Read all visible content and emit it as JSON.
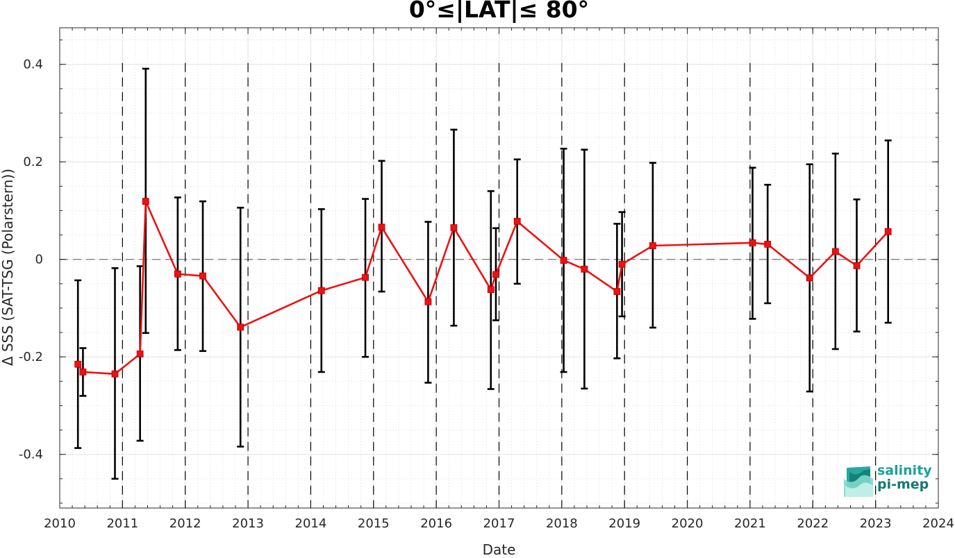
{
  "chart_data": {
    "type": "line",
    "title": "0°≤|LAT|≤ 80°",
    "xlabel": "Date",
    "ylabel": "Δ SSS (SAT-TSG (Polarstern))",
    "xlim": [
      2010,
      2024
    ],
    "ylim": [
      -0.51,
      0.475
    ],
    "x_ticks": [
      2010,
      2011,
      2012,
      2013,
      2014,
      2015,
      2016,
      2017,
      2018,
      2019,
      2020,
      2021,
      2022,
      2023,
      2024
    ],
    "y_ticks": [
      -0.4,
      -0.2,
      0,
      0.2,
      0.4
    ],
    "y_tick_labels": [
      "-0.4",
      "-0.2",
      "0",
      "0.2",
      "0.4"
    ],
    "grid": true,
    "minor_grid": true,
    "zero_line": 0,
    "year_boundaries_dashed": [
      2011,
      2012,
      2013,
      2014,
      2015,
      2016,
      2017,
      2018,
      2019,
      2020,
      2021,
      2022,
      2023
    ],
    "colors": {
      "series": "#ee1111",
      "error_bars": "#000000",
      "zero_line": "#888888"
    },
    "series": [
      {
        "marker": "square",
        "points": [
          {
            "x": 2010.29,
            "y": -0.215,
            "low": -0.387,
            "high": -0.043
          },
          {
            "x": 2010.37,
            "y": -0.231,
            "low": -0.28,
            "high": -0.182
          },
          {
            "x": 2010.88,
            "y": -0.235,
            "low": -0.45,
            "high": -0.018
          },
          {
            "x": 2011.28,
            "y": -0.194,
            "low": -0.372,
            "high": -0.014
          },
          {
            "x": 2011.37,
            "y": 0.119,
            "low": -0.151,
            "high": 0.391
          },
          {
            "x": 2011.88,
            "y": -0.03,
            "low": -0.186,
            "high": 0.127
          },
          {
            "x": 2012.28,
            "y": -0.034,
            "low": -0.188,
            "high": 0.119
          },
          {
            "x": 2012.88,
            "y": -0.139,
            "low": -0.384,
            "high": 0.106
          },
          {
            "x": 2014.17,
            "y": -0.064,
            "low": -0.231,
            "high": 0.103
          },
          {
            "x": 2014.87,
            "y": -0.037,
            "low": -0.2,
            "high": 0.124
          },
          {
            "x": 2015.13,
            "y": 0.066,
            "low": -0.066,
            "high": 0.202
          },
          {
            "x": 2015.87,
            "y": -0.087,
            "low": -0.253,
            "high": 0.077
          },
          {
            "x": 2016.28,
            "y": 0.065,
            "low": -0.136,
            "high": 0.266
          },
          {
            "x": 2016.87,
            "y": -0.062,
            "low": -0.266,
            "high": 0.14
          },
          {
            "x": 2016.95,
            "y": -0.031,
            "low": -0.125,
            "high": 0.064
          },
          {
            "x": 2017.29,
            "y": 0.078,
            "low": -0.05,
            "high": 0.205
          },
          {
            "x": 2018.03,
            "y": -0.002,
            "low": -0.231,
            "high": 0.227
          },
          {
            "x": 2018.36,
            "y": -0.02,
            "low": -0.265,
            "high": 0.225
          },
          {
            "x": 2018.88,
            "y": -0.066,
            "low": -0.203,
            "high": 0.073
          },
          {
            "x": 2018.96,
            "y": -0.01,
            "low": -0.117,
            "high": 0.097
          },
          {
            "x": 2019.45,
            "y": 0.028,
            "low": -0.14,
            "high": 0.198
          },
          {
            "x": 2021.04,
            "y": 0.034,
            "low": -0.122,
            "high": 0.188
          },
          {
            "x": 2021.28,
            "y": 0.031,
            "low": -0.09,
            "high": 0.153
          },
          {
            "x": 2021.95,
            "y": -0.038,
            "low": -0.271,
            "high": 0.195
          },
          {
            "x": 2022.36,
            "y": 0.016,
            "low": -0.184,
            "high": 0.217
          },
          {
            "x": 2022.7,
            "y": -0.013,
            "low": -0.148,
            "high": 0.123
          },
          {
            "x": 2023.2,
            "y": 0.057,
            "low": -0.13,
            "high": 0.244
          }
        ]
      }
    ]
  },
  "logo": {
    "line1": "salinity",
    "line2": "pi-mep",
    "icon_name": "salinity-waves-icon",
    "colors": [
      "#1aa39a",
      "#137a72",
      "#7fd8cc"
    ]
  }
}
